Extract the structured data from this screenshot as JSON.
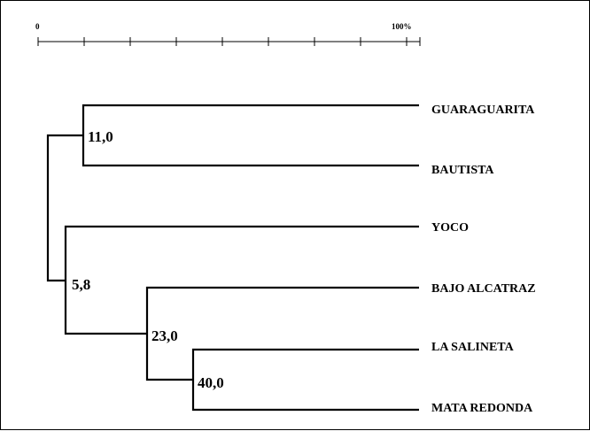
{
  "scale": {
    "min_label": "0",
    "max_label": "100%"
  },
  "leaves": [
    {
      "label": "GUARAGUARITA"
    },
    {
      "label": "BAUTISTA"
    },
    {
      "label": "YOCO"
    },
    {
      "label": "BAJO ALCATRAZ"
    },
    {
      "label": "LA SALINETA"
    },
    {
      "label": "MATA REDONDA"
    }
  ],
  "nodes": [
    {
      "label": "11,0",
      "value": 11.0
    },
    {
      "label": "5,8",
      "value": 5.8
    },
    {
      "label": "23,0",
      "value": 23.0
    },
    {
      "label": "40,0",
      "value": 40.0
    }
  ]
}
